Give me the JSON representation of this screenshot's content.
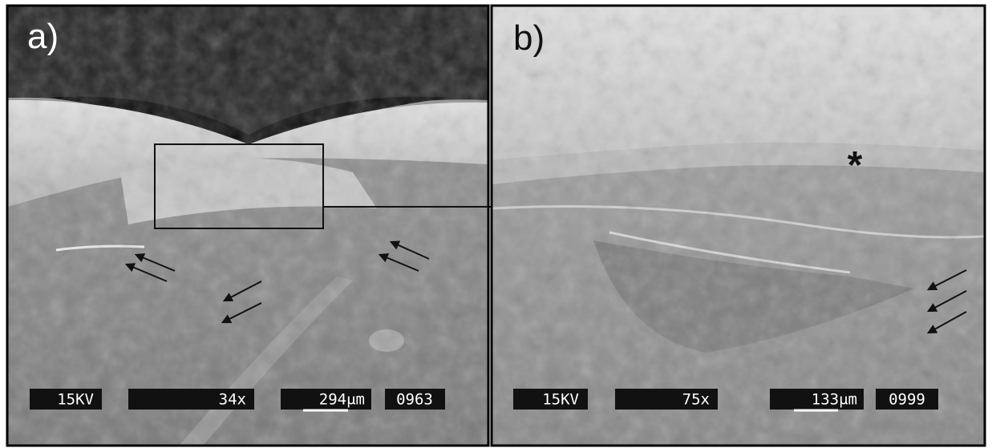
{
  "panels": [
    {
      "label": "a)",
      "voltage": "15KV",
      "magnification": "34x",
      "scale": "294μm",
      "image_id": "0963"
    },
    {
      "label": "b)",
      "voltage": "15KV",
      "magnification": "75x",
      "scale": "133μm",
      "image_id": "0999",
      "marker": "*"
    }
  ]
}
